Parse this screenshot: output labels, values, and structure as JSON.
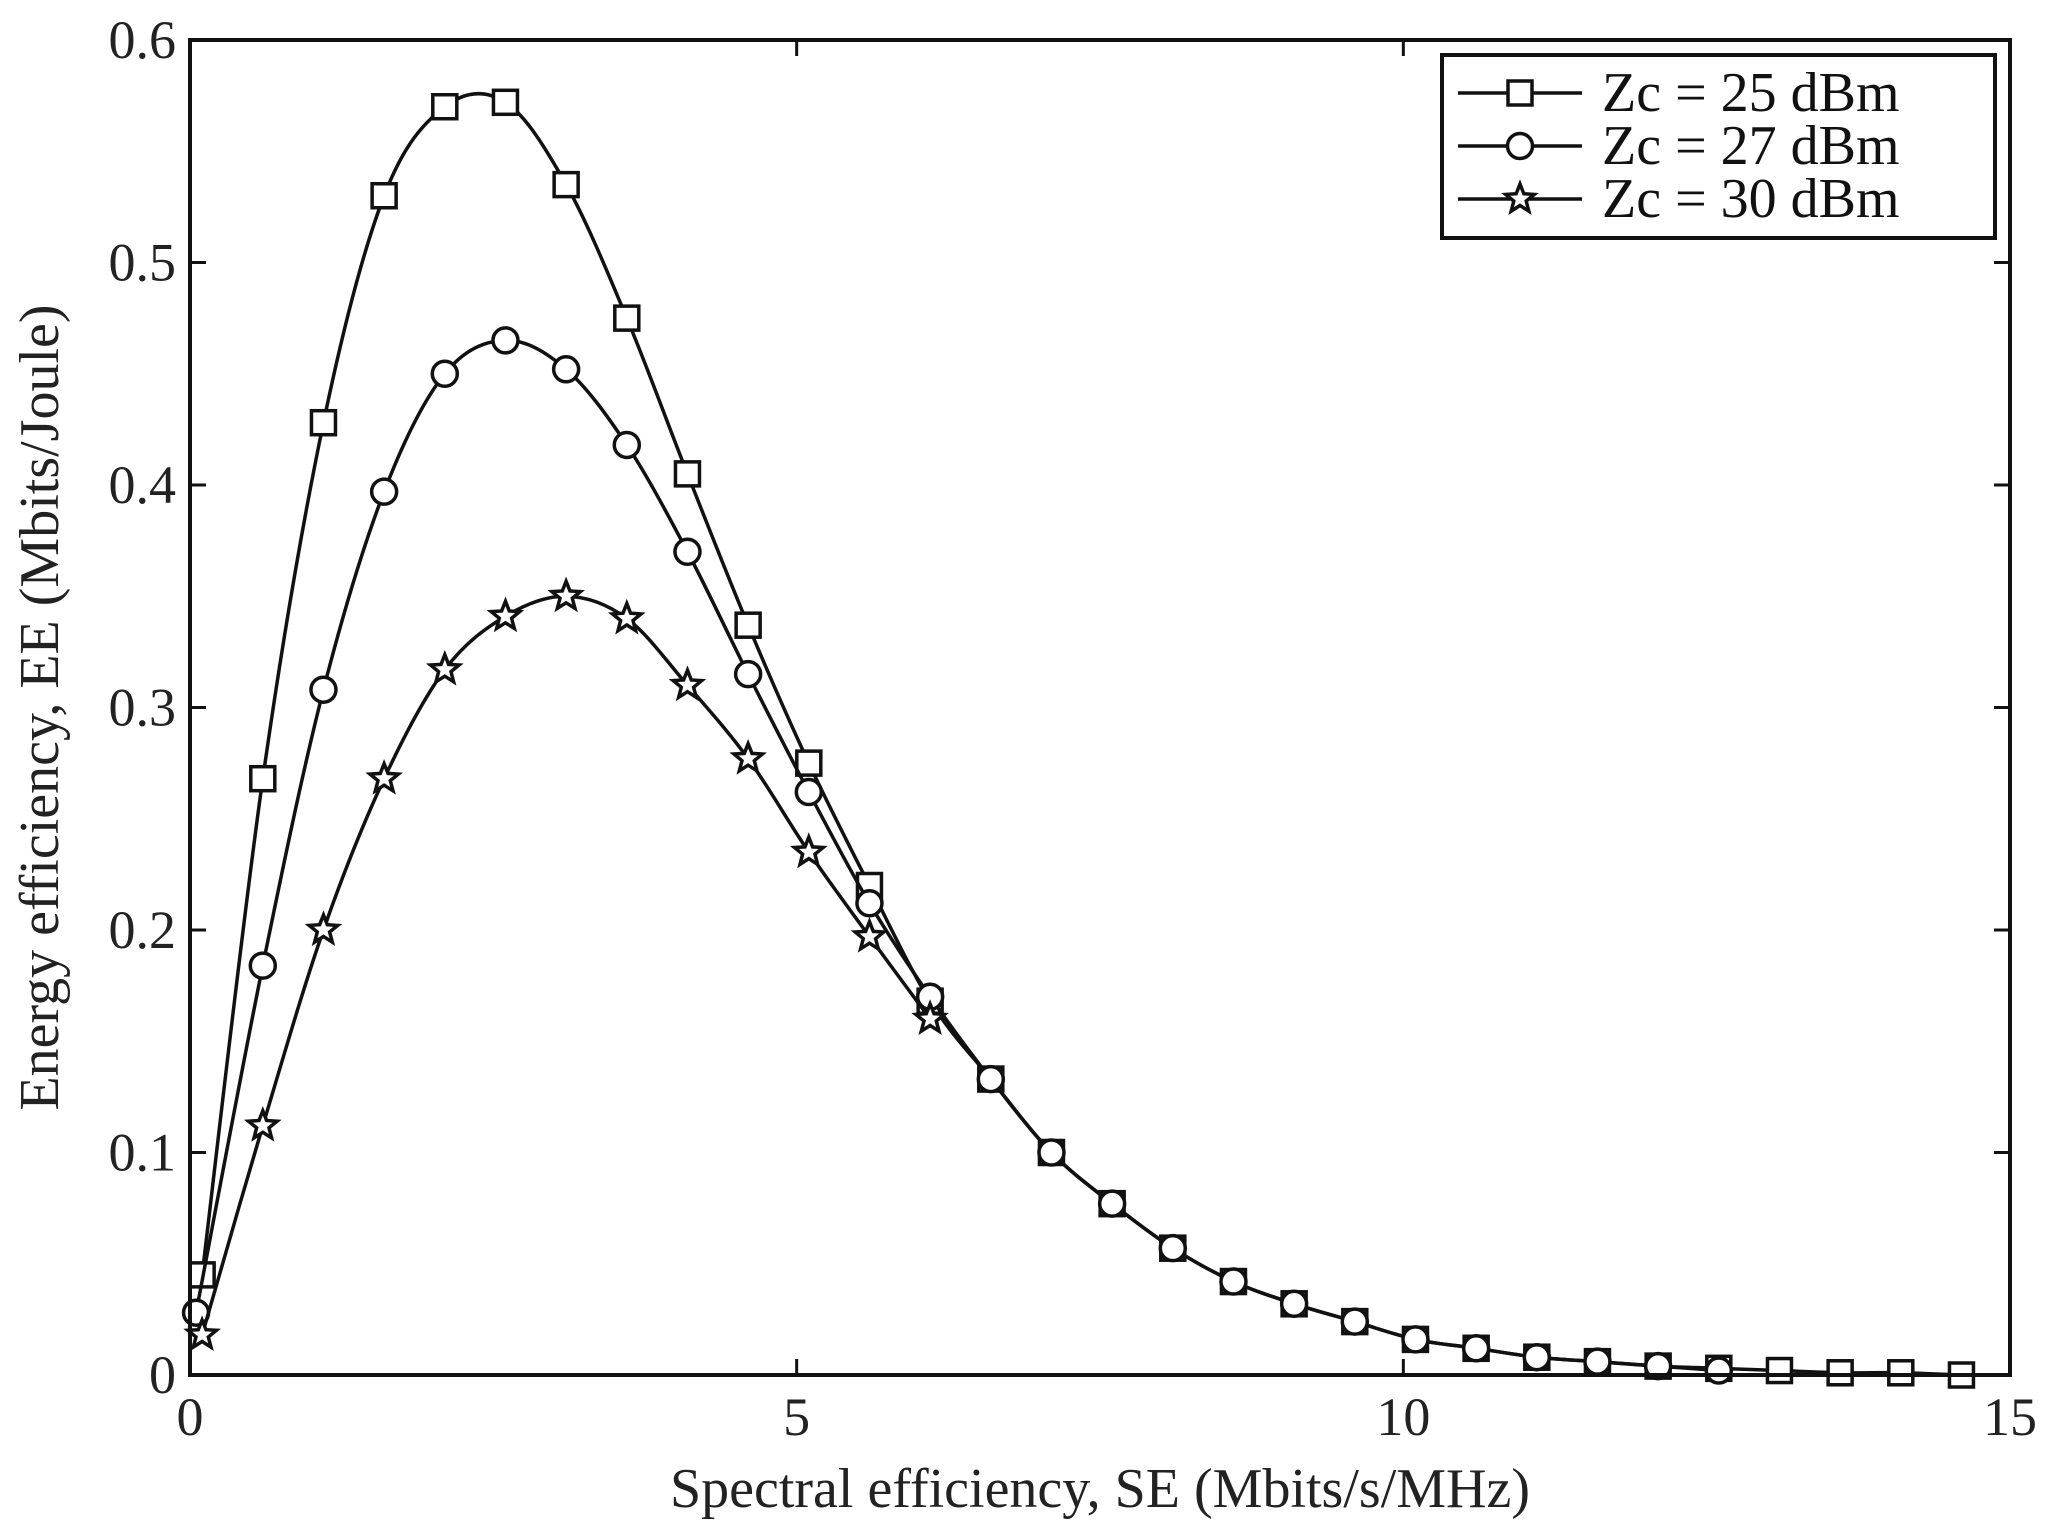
{
  "chart_data": {
    "type": "line",
    "title": "",
    "xlabel": "Spectral efficiency, SE (Mbits/s/MHz)",
    "ylabel": "Energy efficiency, EE (Mbits/Joule)",
    "xlim": [
      0,
      15
    ],
    "ylim": [
      0,
      0.6
    ],
    "xticks": [
      0,
      5,
      10,
      15
    ],
    "xtick_labels": [
      "0",
      "5",
      "10",
      "15"
    ],
    "yticks": [
      0,
      0.1,
      0.2,
      0.3,
      0.4,
      0.5,
      0.6
    ],
    "ytick_labels": [
      "0",
      "0.1",
      "0.2",
      "0.3",
      "0.4",
      "0.5",
      "0.6"
    ],
    "grid": false,
    "legend_position": "top-right",
    "series": [
      {
        "name": "Zc = 25 dBm",
        "marker": "square",
        "x": [
          0.1,
          0.6,
          1.1,
          1.6,
          2.1,
          2.6,
          3.1,
          3.6,
          4.1,
          4.6,
          5.1,
          5.6,
          6.1,
          6.6,
          7.1,
          7.6,
          8.1,
          8.6,
          9.1,
          9.6,
          10.1,
          10.6,
          11.1,
          11.6,
          12.1,
          12.6,
          13.1,
          13.6,
          14.1,
          14.6
        ],
        "y": [
          0.045,
          0.268,
          0.428,
          0.53,
          0.57,
          0.572,
          0.535,
          0.475,
          0.405,
          0.337,
          0.275,
          0.22,
          0.168,
          0.133,
          0.1,
          0.077,
          0.057,
          0.042,
          0.032,
          0.024,
          0.016,
          0.012,
          0.008,
          0.006,
          0.004,
          0.003,
          0.002,
          0.001,
          0.001,
          0.0
        ]
      },
      {
        "name": "Zc = 27 dBm",
        "marker": "circle",
        "x": [
          0.05,
          0.6,
          1.1,
          1.6,
          2.1,
          2.6,
          3.1,
          3.6,
          4.1,
          4.6,
          5.1,
          5.6,
          6.1,
          6.6,
          7.1,
          7.6,
          8.1,
          8.6,
          9.1,
          9.6,
          10.1,
          10.6,
          11.1,
          11.6,
          12.1,
          12.6
        ],
        "y": [
          0.028,
          0.184,
          0.308,
          0.397,
          0.45,
          0.465,
          0.452,
          0.418,
          0.37,
          0.315,
          0.262,
          0.212,
          0.17,
          0.133,
          0.1,
          0.077,
          0.057,
          0.042,
          0.032,
          0.024,
          0.016,
          0.012,
          0.008,
          0.006,
          0.004,
          0.002
        ]
      },
      {
        "name": "Zc = 30 dBm",
        "marker": "star",
        "x": [
          0.1,
          0.6,
          1.1,
          1.6,
          2.1,
          2.6,
          3.1,
          3.6,
          4.1,
          4.6,
          5.1,
          5.6,
          6.1
        ],
        "y": [
          0.018,
          0.112,
          0.2,
          0.268,
          0.317,
          0.341,
          0.35,
          0.34,
          0.31,
          0.277,
          0.235,
          0.197,
          0.16
        ]
      }
    ]
  }
}
